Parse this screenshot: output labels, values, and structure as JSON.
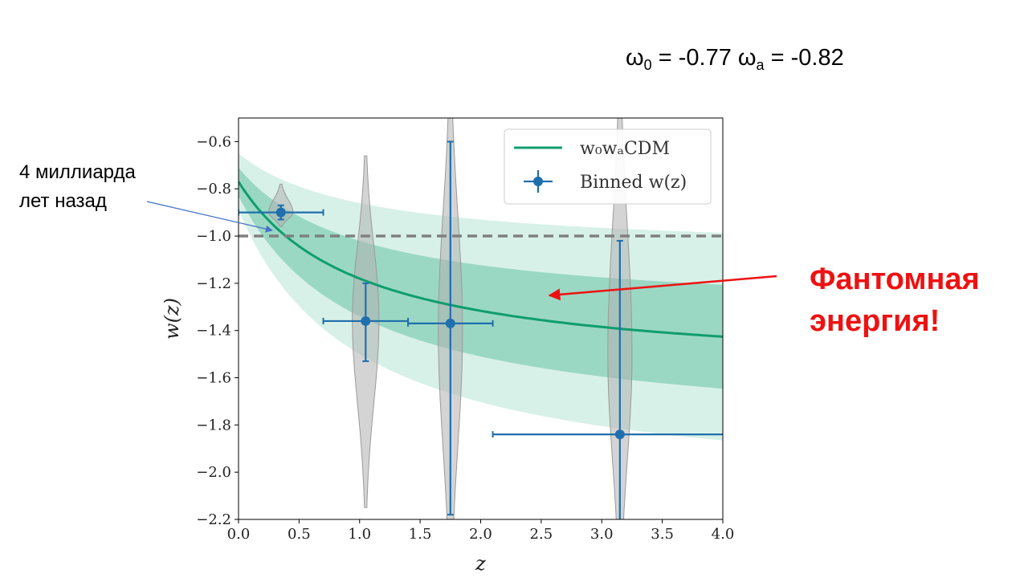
{
  "header": {
    "formula": {
      "w0_symbol": "ω",
      "w0_sub": "0",
      "w0_value": " = -0.77  ",
      "wa_symbol": "ω",
      "wa_sub": "a",
      "wa_value": " = -0.82"
    }
  },
  "annotation": {
    "line1": "4 миллиарда",
    "line2": "лет назад",
    "arrow_color": "#4472c4"
  },
  "callout": {
    "line1": "Фантомная",
    "line2": "энергия!",
    "color": "#ee1111"
  },
  "chart_data": {
    "type": "line",
    "xlabel": "z",
    "ylabel": "w(z)",
    "xlim": [
      0,
      4
    ],
    "ylim": [
      -2.2,
      -0.5
    ],
    "x_ticks": [
      0.0,
      0.5,
      1.0,
      1.5,
      2.0,
      2.5,
      3.0,
      3.5,
      4.0
    ],
    "x_tick_labels": [
      "0.0",
      "0.5",
      "1.0",
      "1.5",
      "2.0",
      "2.5",
      "3.0",
      "3.5",
      "4.0"
    ],
    "y_ticks": [
      -0.6,
      -0.8,
      -1.0,
      -1.2,
      -1.4,
      -1.6,
      -1.8,
      -2.0,
      -2.2
    ],
    "y_tick_labels": [
      "−0.6",
      "−0.8",
      "−1.0",
      "−1.2",
      "−1.4",
      "−1.6",
      "−1.8",
      "−2.0",
      "−2.2"
    ],
    "grid": false,
    "legend": {
      "placement": "top-right",
      "entries": [
        {
          "label": "w₀wₐCDM"
        },
        {
          "label": "Binned w(z)"
        }
      ]
    },
    "reference_line": {
      "y": -1.0,
      "style": "dashed",
      "color": "#808080"
    },
    "model": {
      "name": "w₀wₐCDM",
      "w0": -0.77,
      "wa": -0.82,
      "color": "#0f9d6e",
      "band_1sigma": {
        "w0_sigma": 0.06,
        "wa_sigma": 0.2,
        "color": "#9ad8c3"
      },
      "band_2sigma": {
        "w0_sigma": 0.12,
        "wa_sigma": 0.4,
        "color": "#d8f1e8"
      }
    },
    "binned": {
      "name": "Binned w(z)",
      "color": "#1f6fad",
      "points": [
        {
          "x": 0.35,
          "y": -0.9,
          "x_low": 0.0,
          "x_high": 0.7,
          "y_low": -0.93,
          "y_high": -0.87
        },
        {
          "x": 1.05,
          "y": -1.36,
          "x_low": 0.7,
          "x_high": 1.4,
          "y_low": -1.53,
          "y_high": -1.2
        },
        {
          "x": 1.75,
          "y": -1.37,
          "x_low": 1.4,
          "x_high": 2.1,
          "y_low": -2.18,
          "y_high": -0.6
        },
        {
          "x": 3.15,
          "y": -1.84,
          "x_low": 2.1,
          "x_high": 4.2,
          "y_low": -2.35,
          "y_high": -1.02
        }
      ]
    },
    "violins": {
      "color": "#b0b0b0",
      "items": [
        {
          "x": 0.35,
          "y_low": -0.96,
          "y_high": -0.78,
          "peak": -0.9,
          "half_width": 0.1
        },
        {
          "x": 1.05,
          "y_low": -2.15,
          "y_high": -0.66,
          "peak": -1.35,
          "half_width": 0.11
        },
        {
          "x": 1.75,
          "y_low": -2.5,
          "y_high": -0.3,
          "peak": -1.4,
          "half_width": 0.1
        },
        {
          "x": 3.15,
          "y_low": -2.5,
          "y_high": -0.3,
          "peak": -1.5,
          "half_width": 0.1
        }
      ]
    }
  }
}
